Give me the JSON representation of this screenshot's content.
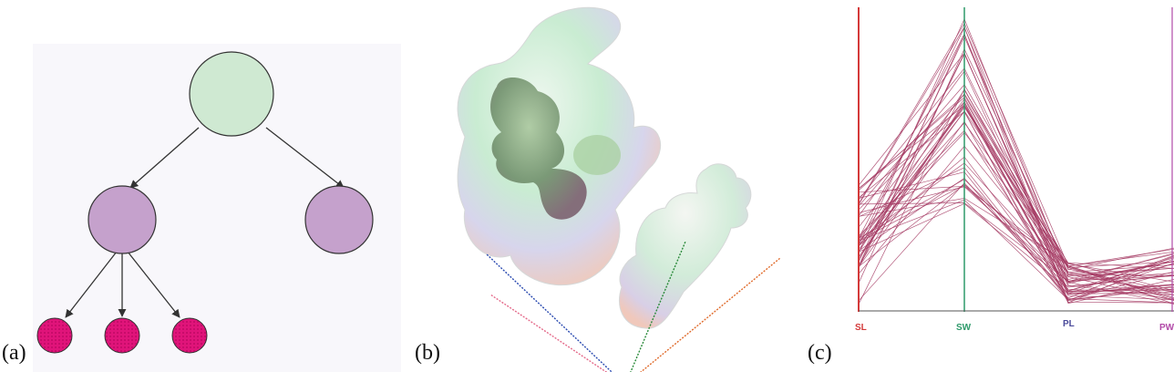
{
  "panels": {
    "a": {
      "label": "(a)"
    },
    "b": {
      "label": "(b)"
    },
    "c": {
      "label": "(c)",
      "axes": [
        {
          "name": "SL",
          "color": "#d43a3a"
        },
        {
          "name": "SW",
          "color": "#2e9a6a"
        },
        {
          "name": "PL",
          "color": "#4a4a9a"
        },
        {
          "name": "PW",
          "color": "#b24aa8"
        }
      ]
    }
  },
  "colors": {
    "root_node": "#cfe9d2",
    "mid_node": "#c5a1cc",
    "leaf_node": "#e0147a",
    "edge": "#333333",
    "tree_bg": "#f8f7fb",
    "pc_line": "#a43a63"
  }
}
